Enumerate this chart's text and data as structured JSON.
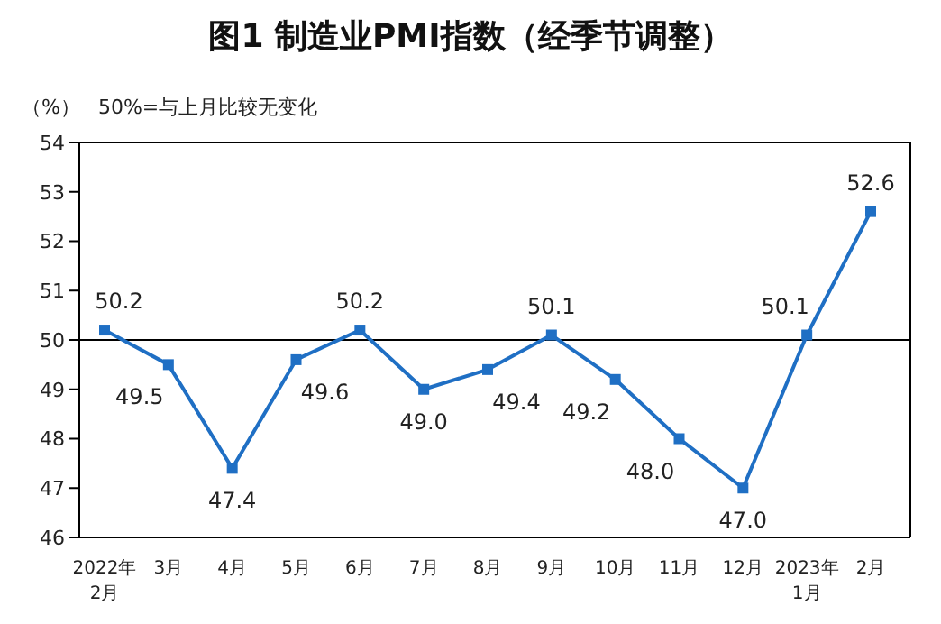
{
  "chart_data": {
    "type": "line",
    "title": "图1 制造业PMI指数（经季节调整）",
    "ylabel": "（%）",
    "annotations": [
      "50%=与上月比较无变化"
    ],
    "categories": [
      "2022年\n2月",
      "3月",
      "4月",
      "5月",
      "6月",
      "7月",
      "8月",
      "9月",
      "10月",
      "11月",
      "12月",
      "2023年\n1月",
      "2月"
    ],
    "series": [
      {
        "color": "#1f6fc4",
        "values": [
          50.2,
          49.5,
          47.4,
          49.6,
          50.2,
          49.0,
          49.4,
          50.1,
          49.2,
          48.0,
          47.0,
          50.1,
          52.6
        ],
        "value_labels": [
          "50.2",
          "49.5",
          "47.4",
          "49.6",
          "50.2",
          "49.0",
          "49.4",
          "50.1",
          "49.2",
          "48.0",
          "47.0",
          "50.1",
          "52.6"
        ]
      }
    ],
    "ylim": [
      46,
      54
    ],
    "yticks": [
      46,
      47,
      48,
      49,
      50,
      51,
      52,
      53,
      54
    ],
    "grid": false,
    "legend": false,
    "marker": "square",
    "line_style": "solid",
    "ref_lines": [
      {
        "axis": "y",
        "value": 50,
        "color": "#000000"
      }
    ]
  }
}
